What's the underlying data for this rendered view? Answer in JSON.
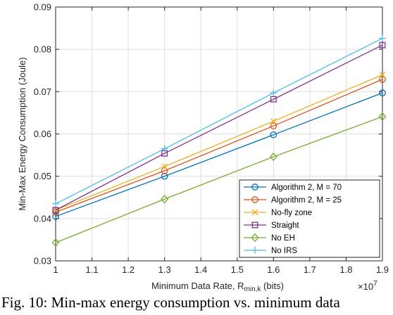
{
  "chart_data": {
    "type": "line",
    "xlabel_main": "Minimum Data Rate,  R",
    "xlabel_sub": "min,k",
    "xlabel_unit": " (bits)",
    "x_multiplier": "×10",
    "x_multiplier_exp": "7",
    "ylabel": "Min-Max Energy Consumption (Joule)",
    "xlim": [
      10000000,
      19000000
    ],
    "ylim": [
      0.03,
      0.09
    ],
    "xticks": [
      10000000,
      11000000,
      12000000,
      13000000,
      14000000,
      15000000,
      16000000,
      17000000,
      18000000,
      19000000
    ],
    "xtick_labels": [
      "1",
      "1.1",
      "1.2",
      "1.3",
      "1.4",
      "1.5",
      "1.6",
      "1.7",
      "1.8",
      "1.9"
    ],
    "yticks": [
      0.03,
      0.04,
      0.05,
      0.06,
      0.07,
      0.08,
      0.09
    ],
    "ytick_labels": [
      "0.03",
      "0.04",
      "0.05",
      "0.06",
      "0.07",
      "0.08",
      "0.09"
    ],
    "grid": true,
    "legend_position": "bottom-right",
    "x": [
      10000000,
      13000000,
      16000000,
      19000000
    ],
    "series": [
      {
        "name": "Algorithm  2, M = 70",
        "values": [
          0.0405,
          0.05,
          0.0598,
          0.0697
        ],
        "color": "#0072BD",
        "marker": "circle"
      },
      {
        "name": "Algorithm  2, M = 25",
        "values": [
          0.0415,
          0.0513,
          0.0619,
          0.0729
        ],
        "color": "#D95319",
        "marker": "circle"
      },
      {
        "name": "No-fly zone",
        "values": [
          0.042,
          0.0523,
          0.063,
          0.074
        ],
        "color": "#EDB120",
        "marker": "x"
      },
      {
        "name": "Straight",
        "values": [
          0.042,
          0.0554,
          0.0682,
          0.081
        ],
        "color": "#7E2F8E",
        "marker": "square"
      },
      {
        "name": "No EH",
        "values": [
          0.0343,
          0.0446,
          0.0546,
          0.0641
        ],
        "color": "#77AC30",
        "marker": "diamond"
      },
      {
        "name": "No IRS",
        "values": [
          0.0435,
          0.0565,
          0.0697,
          0.0826
        ],
        "color": "#4DBEEE",
        "marker": "plus"
      }
    ]
  },
  "caption": "Fig. 10: Min-max energy consumption vs. minimum data"
}
